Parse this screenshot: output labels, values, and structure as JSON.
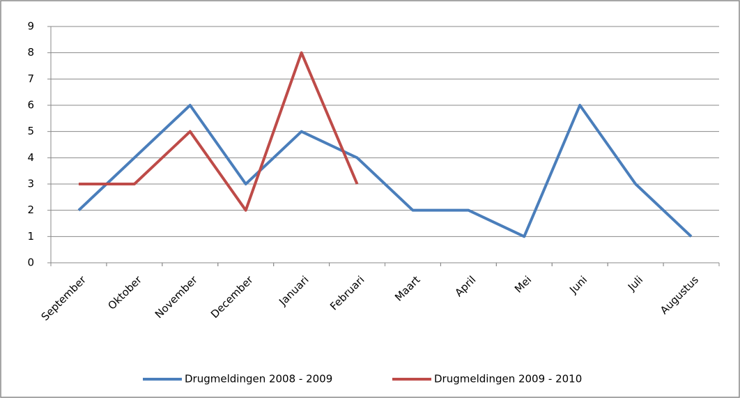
{
  "chart_data": {
    "type": "line",
    "categories": [
      "September",
      "Oktober",
      "November",
      "December",
      "Januari",
      "Februari",
      "Maart",
      "April",
      "Mei",
      "Juni",
      "Juli",
      "Augustus"
    ],
    "series": [
      {
        "name": "Drugmeldingen 2008 - 2009",
        "color": "#4a7ebb",
        "values": [
          2,
          4,
          6,
          3,
          5,
          4,
          2,
          2,
          1,
          6,
          3,
          1
        ]
      },
      {
        "name": "Drugmeldingen 2009 - 2010",
        "color": "#be4b48",
        "values": [
          3,
          3,
          5,
          2,
          8,
          3,
          null,
          null,
          null,
          null,
          null,
          null
        ]
      }
    ],
    "ylim": [
      0,
      9
    ],
    "yticks": [
      0,
      1,
      2,
      3,
      4,
      5,
      6,
      7,
      8,
      9
    ],
    "grid": true,
    "legend": "bottom"
  }
}
